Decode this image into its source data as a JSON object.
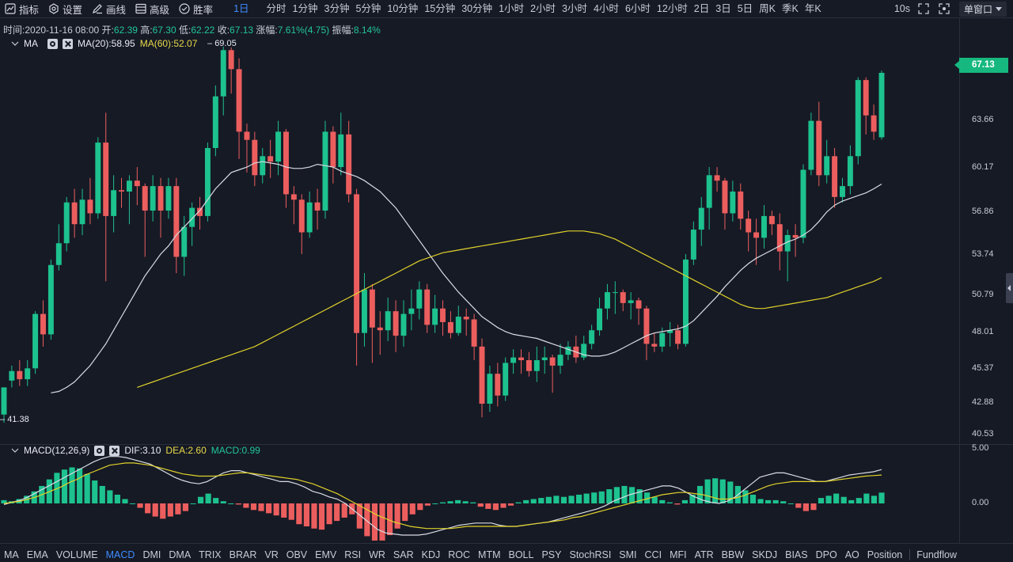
{
  "toolbar": {
    "tools": [
      {
        "label": "指标",
        "icon": "chart-line-icon"
      },
      {
        "label": "设置",
        "icon": "gear-icon"
      },
      {
        "label": "画线",
        "icon": "pencil-icon"
      },
      {
        "label": "高级",
        "icon": "window-icon"
      },
      {
        "label": "胜率",
        "icon": "check-circle-icon"
      }
    ],
    "intervals": [
      "1日",
      "分时",
      "1分钟",
      "3分钟",
      "5分钟",
      "10分钟",
      "15分钟",
      "30分钟",
      "1小时",
      "2小时",
      "3小时",
      "4小时",
      "6小时",
      "12小时",
      "2日",
      "3日",
      "5日",
      "周K",
      "季K",
      "年K"
    ],
    "active_interval": "1日",
    "refresh": "10s",
    "window_mode": "单窗口"
  },
  "ohlc": {
    "time_label": "时间:",
    "time": "2020-11-16 08:00",
    "open_label": "开:",
    "open": "62.39",
    "high_label": "高:",
    "high": "67.30",
    "low_label": "低:",
    "low": "62.22",
    "close_label": "收:",
    "close": "67.13",
    "change_label": "涨幅:",
    "change": "7.61%(4.75)",
    "amp_label": "振幅:",
    "amp": "8.14%"
  },
  "ma_legend": {
    "name": "MA",
    "ma20": "MA(20):58.95",
    "ma60": "MA(60):52.07",
    "high_mark": "69.05",
    "low_mark": "41.38"
  },
  "macd_legend": {
    "name": "MACD(12,26,9)",
    "dif": "DIF:3.10",
    "dea": "DEA:2.60",
    "macd": "MACD:0.99"
  },
  "price_axis": [
    "63.66",
    "60.17",
    "56.86",
    "53.74",
    "50.79",
    "48.01",
    "45.37",
    "42.88",
    "40.53"
  ],
  "last_price": "67.13",
  "macd_axis": [
    "5.00",
    "0.00"
  ],
  "colors": {
    "up": "#1dc28f",
    "down": "#ec5e5e",
    "ma20": "#d9dce4",
    "ma60": "#e0d12a",
    "background": "#161a25"
  },
  "indicator_tabs": [
    "MA",
    "EMA",
    "VOLUME",
    "MACD",
    "DMI",
    "DMA",
    "TRIX",
    "BRAR",
    "VR",
    "OBV",
    "EMV",
    "RSI",
    "WR",
    "SAR",
    "KDJ",
    "ROC",
    "MTM",
    "BOLL",
    "PSY",
    "StochRSI",
    "SMI",
    "CCI",
    "MFI",
    "ATR",
    "BBW",
    "SKDJ",
    "BIAS",
    "DPO",
    "AO",
    "Position",
    "Fundflow"
  ],
  "active_tab": "MACD",
  "chart_data": {
    "type": "candlestick",
    "candles": [
      [
        42.0,
        44.0,
        42.0,
        41.4
      ],
      [
        44.5,
        45.2,
        45.6,
        44.0
      ],
      [
        45.2,
        44.6,
        46.0,
        44.1
      ],
      [
        44.6,
        45.4,
        46.0,
        44.1
      ],
      [
        45.4,
        49.4,
        49.6,
        45.0
      ],
      [
        49.4,
        47.9,
        50.4,
        47.0
      ],
      [
        47.9,
        53.0,
        53.4,
        47.5
      ],
      [
        53.0,
        54.6,
        56.0,
        52.6
      ],
      [
        54.6,
        57.6,
        58.0,
        54.0
      ],
      [
        57.6,
        56.0,
        58.6,
        55.0
      ],
      [
        56.0,
        57.8,
        58.6,
        55.2
      ],
      [
        57.8,
        56.8,
        59.4,
        56.0
      ],
      [
        56.8,
        62.0,
        62.4,
        56.4
      ],
      [
        62.0,
        56.6,
        64.2,
        51.8
      ],
      [
        56.6,
        58.5,
        59.6,
        55.4
      ],
      [
        58.5,
        58.4,
        59.4,
        57.2
      ],
      [
        58.4,
        59.2,
        59.6,
        56.0
      ],
      [
        59.2,
        58.8,
        60.2,
        57.4
      ],
      [
        58.8,
        57.0,
        59.0,
        53.6
      ],
      [
        57.0,
        58.8,
        59.6,
        56.2
      ],
      [
        58.8,
        57.0,
        59.4,
        55.0
      ],
      [
        57.0,
        58.8,
        59.4,
        56.4
      ],
      [
        58.8,
        53.6,
        59.4,
        52.4
      ],
      [
        53.6,
        55.8,
        56.6,
        52.2
      ],
      [
        55.8,
        57.2,
        57.6,
        54.4
      ],
      [
        57.2,
        56.6,
        58.0,
        55.6
      ],
      [
        56.6,
        61.6,
        62.0,
        56.2
      ],
      [
        61.6,
        65.4,
        66.2,
        61.0
      ],
      [
        65.4,
        68.8,
        69.05,
        64.0
      ],
      [
        68.8,
        67.4,
        69.0,
        65.6
      ],
      [
        67.4,
        62.8,
        68.2,
        60.8
      ],
      [
        62.8,
        62.2,
        63.4,
        59.8
      ],
      [
        62.2,
        59.6,
        62.8,
        58.8
      ],
      [
        59.6,
        61.0,
        61.6,
        59.0
      ],
      [
        61.0,
        60.6,
        62.2,
        59.4
      ],
      [
        60.6,
        62.8,
        63.6,
        59.6
      ],
      [
        62.8,
        58.2,
        63.0,
        57.2
      ],
      [
        58.2,
        57.8,
        58.8,
        56.0
      ],
      [
        57.8,
        55.4,
        58.2,
        53.8
      ],
      [
        55.4,
        57.6,
        58.4,
        55.0
      ],
      [
        57.6,
        57.0,
        58.6,
        55.6
      ],
      [
        57.0,
        62.8,
        63.6,
        56.4
      ],
      [
        62.8,
        60.2,
        63.2,
        59.0
      ],
      [
        60.2,
        62.6,
        64.2,
        59.6
      ],
      [
        62.6,
        58.2,
        63.6,
        57.6
      ],
      [
        58.2,
        48.0,
        58.6,
        45.6
      ],
      [
        48.0,
        51.2,
        52.4,
        47.0
      ],
      [
        51.2,
        48.4,
        51.6,
        45.8
      ],
      [
        48.4,
        48.2,
        49.6,
        46.4
      ],
      [
        48.2,
        49.6,
        50.6,
        47.4
      ],
      [
        49.6,
        47.8,
        50.4,
        46.6
      ],
      [
        47.8,
        49.4,
        50.4,
        47.0
      ],
      [
        49.4,
        49.8,
        51.2,
        48.2
      ],
      [
        49.8,
        51.2,
        51.8,
        49.0
      ],
      [
        51.2,
        48.6,
        51.6,
        48.0
      ],
      [
        48.6,
        49.8,
        50.8,
        48.0
      ],
      [
        49.8,
        48.8,
        50.4,
        47.8
      ],
      [
        48.8,
        48.0,
        49.6,
        47.6
      ],
      [
        48.0,
        49.2,
        50.0,
        47.8
      ],
      [
        49.2,
        49.0,
        49.8,
        47.8
      ],
      [
        49.0,
        47.0,
        49.4,
        46.0
      ],
      [
        47.0,
        42.8,
        47.6,
        41.8
      ],
      [
        42.8,
        45.0,
        45.6,
        42.2
      ],
      [
        45.0,
        43.4,
        45.8,
        42.6
      ],
      [
        43.4,
        45.8,
        46.2,
        43.0
      ],
      [
        45.8,
        46.2,
        46.8,
        45.0
      ],
      [
        46.2,
        46.0,
        46.8,
        45.0
      ],
      [
        46.0,
        45.2,
        46.6,
        44.8
      ],
      [
        45.2,
        46.0,
        47.0,
        44.4
      ],
      [
        46.0,
        46.2,
        47.0,
        45.0
      ],
      [
        46.2,
        45.6,
        46.4,
        43.6
      ],
      [
        45.6,
        46.4,
        47.2,
        45.0
      ],
      [
        46.4,
        47.0,
        47.4,
        46.0
      ],
      [
        47.0,
        46.2,
        47.8,
        45.8
      ],
      [
        46.2,
        47.2,
        47.8,
        46.0
      ],
      [
        47.2,
        48.2,
        48.6,
        46.8
      ],
      [
        48.2,
        49.8,
        50.6,
        47.8
      ],
      [
        49.8,
        51.0,
        51.6,
        49.0
      ],
      [
        51.0,
        51.0,
        51.8,
        49.4
      ],
      [
        51.0,
        50.2,
        51.2,
        49.6
      ],
      [
        50.2,
        50.4,
        51.0,
        49.0
      ],
      [
        50.4,
        49.8,
        50.6,
        48.6
      ],
      [
        49.8,
        47.2,
        50.0,
        46.0
      ],
      [
        47.2,
        47.0,
        48.0,
        46.6
      ],
      [
        47.0,
        48.0,
        48.4,
        46.6
      ],
      [
        48.0,
        48.2,
        48.8,
        47.0
      ],
      [
        48.2,
        47.2,
        48.6,
        46.8
      ],
      [
        47.2,
        53.4,
        53.8,
        47.0
      ],
      [
        53.4,
        55.6,
        56.2,
        53.0
      ],
      [
        55.6,
        57.2,
        58.0,
        54.4
      ],
      [
        57.2,
        59.6,
        60.2,
        55.6
      ],
      [
        59.6,
        59.2,
        60.2,
        58.4
      ],
      [
        59.2,
        56.8,
        59.4,
        55.6
      ],
      [
        56.8,
        58.4,
        59.2,
        56.2
      ],
      [
        58.4,
        56.4,
        59.0,
        55.6
      ],
      [
        56.4,
        55.4,
        57.0,
        54.0
      ],
      [
        55.4,
        55.0,
        56.4,
        53.0
      ],
      [
        55.0,
        56.6,
        57.4,
        54.2
      ],
      [
        56.6,
        56.0,
        57.0,
        55.2
      ],
      [
        56.0,
        54.0,
        56.8,
        52.6
      ],
      [
        54.0,
        55.2,
        55.6,
        51.8
      ],
      [
        55.2,
        55.0,
        56.0,
        53.6
      ],
      [
        55.0,
        60.0,
        60.4,
        54.6
      ],
      [
        60.0,
        63.6,
        64.2,
        59.6
      ],
      [
        63.6,
        59.6,
        65.0,
        58.8
      ],
      [
        59.6,
        61.0,
        62.2,
        59.0
      ],
      [
        61.0,
        58.0,
        61.6,
        57.2
      ],
      [
        58.0,
        58.8,
        59.4,
        57.6
      ],
      [
        58.8,
        61.0,
        61.8,
        58.2
      ],
      [
        61.0,
        66.6,
        66.8,
        60.4
      ],
      [
        66.6,
        64.0,
        66.8,
        62.6
      ],
      [
        64.0,
        62.8,
        64.8,
        62.2
      ],
      [
        62.39,
        67.13,
        67.3,
        62.22
      ]
    ],
    "ma20": [
      43.6,
      43.7,
      44.0,
      44.4,
      45.0,
      45.6,
      46.4,
      47.2,
      48.2,
      49.2,
      50.2,
      51.2,
      52.2,
      53.0,
      53.8,
      54.4,
      55.2,
      55.8,
      56.4,
      57.0,
      57.8,
      58.6,
      59.2,
      59.8,
      60.0,
      60.2,
      60.5,
      60.6,
      60.5,
      60.4,
      60.2,
      60.1,
      60.1,
      60.2,
      60.4,
      60.3,
      60.2,
      59.9,
      59.7,
      59.5,
      59.2,
      58.8,
      58.4,
      57.8,
      57.2,
      56.4,
      55.6,
      54.8,
      54.0,
      53.2,
      52.4,
      51.7,
      51.0,
      50.4,
      49.8,
      49.2,
      48.8,
      48.4,
      48.1,
      47.9,
      47.8,
      47.7,
      47.6,
      47.4,
      47.2,
      47.0,
      46.8,
      46.6,
      46.4,
      46.3,
      46.3,
      46.4,
      46.6,
      46.9,
      47.2,
      47.5,
      47.8,
      48.0,
      48.1,
      48.2,
      48.3,
      48.5,
      48.9,
      49.5,
      50.1,
      50.7,
      51.4,
      52.0,
      52.6,
      53.1,
      53.5,
      53.8,
      54.1,
      54.4,
      54.7,
      54.9,
      55.2,
      55.6,
      56.2,
      56.9,
      57.4,
      57.7,
      57.9,
      58.1,
      58.3,
      58.6,
      58.95
    ],
    "ma60": [
      44.0,
      44.2,
      44.4,
      44.6,
      44.8,
      45.0,
      45.2,
      45.4,
      45.6,
      45.8,
      46.0,
      46.2,
      46.4,
      46.6,
      46.8,
      47.0,
      47.3,
      47.6,
      47.9,
      48.2,
      48.5,
      48.8,
      49.1,
      49.4,
      49.7,
      50.0,
      50.3,
      50.6,
      50.9,
      51.2,
      51.5,
      51.8,
      52.1,
      52.4,
      52.7,
      53.0,
      53.3,
      53.5,
      53.7,
      53.9,
      54.0,
      54.1,
      54.2,
      54.3,
      54.4,
      54.5,
      54.6,
      54.7,
      54.8,
      54.9,
      55.0,
      55.1,
      55.2,
      55.3,
      55.4,
      55.5,
      55.5,
      55.5,
      55.4,
      55.3,
      55.1,
      54.9,
      54.6,
      54.3,
      54.0,
      53.7,
      53.4,
      53.1,
      52.8,
      52.5,
      52.2,
      51.9,
      51.6,
      51.3,
      51.0,
      50.7,
      50.4,
      50.1,
      49.9,
      49.8,
      49.8,
      49.9,
      50.0,
      50.1,
      50.2,
      50.3,
      50.4,
      50.5,
      50.6,
      50.8,
      51.0,
      51.2,
      51.4,
      51.6,
      51.8,
      52.07
    ],
    "macd": {
      "dif": [
        -0.1,
        0.1,
        0.3,
        0.6,
        1.0,
        1.4,
        1.8,
        2.2,
        2.6,
        3.0,
        3.4,
        3.8,
        4.1,
        4.3,
        4.3,
        4.2,
        4.0,
        3.8,
        3.6,
        3.2,
        2.8,
        2.4,
        2.1,
        1.9,
        1.8,
        2.0,
        2.4,
        2.8,
        3.0,
        3.0,
        2.8,
        2.6,
        2.4,
        2.2,
        2.0,
        2.0,
        1.8,
        1.5,
        1.1,
        0.9,
        0.6,
        0.4,
        0.0,
        -0.6,
        -1.2,
        -1.8,
        -2.4,
        -2.7,
        -2.8,
        -2.9,
        -2.9,
        -2.9,
        -2.8,
        -2.6,
        -2.4,
        -2.2,
        -2.0,
        -1.9,
        -1.8,
        -1.8,
        -1.8,
        -2.0,
        -2.1,
        -2.1,
        -2.0,
        -1.9,
        -1.8,
        -1.7,
        -1.5,
        -1.3,
        -1.1,
        -0.9,
        -0.7,
        -0.5,
        -0.2,
        0.2,
        0.5,
        0.8,
        1.0,
        1.2,
        1.4,
        1.6,
        1.6,
        1.4,
        1.0,
        0.6,
        0.3,
        0.1,
        0.0,
        0.2,
        0.6,
        1.2,
        1.8,
        2.4,
        2.6,
        2.8,
        2.8,
        2.6,
        2.4,
        2.2,
        2.0,
        2.0,
        2.2,
        2.4,
        2.6,
        2.7,
        2.8,
        2.9,
        3.1
      ],
      "dea": [
        0.0,
        0.1,
        0.2,
        0.4,
        0.6,
        0.9,
        1.2,
        1.5,
        1.9,
        2.2,
        2.6,
        2.9,
        3.2,
        3.5,
        3.6,
        3.7,
        3.7,
        3.6,
        3.5,
        3.3,
        3.1,
        2.9,
        2.7,
        2.6,
        2.5,
        2.5,
        2.5,
        2.6,
        2.7,
        2.8,
        2.8,
        2.7,
        2.6,
        2.5,
        2.4,
        2.3,
        2.2,
        2.0,
        1.8,
        1.5,
        1.2,
        0.9,
        0.5,
        0.1,
        -0.3,
        -0.7,
        -1.1,
        -1.4,
        -1.7,
        -1.9,
        -2.1,
        -2.2,
        -2.3,
        -2.3,
        -2.3,
        -2.3,
        -2.2,
        -2.1,
        -2.1,
        -2.1,
        -2.1,
        -2.1,
        -2.1,
        -2.1,
        -2.0,
        -1.9,
        -1.8,
        -1.7,
        -1.6,
        -1.5,
        -1.3,
        -1.2,
        -1.0,
        -0.8,
        -0.6,
        -0.4,
        -0.2,
        0.0,
        0.2,
        0.4,
        0.6,
        0.8,
        0.9,
        1.0,
        1.0,
        0.9,
        0.8,
        0.6,
        0.4,
        0.4,
        0.5,
        0.7,
        1.0,
        1.3,
        1.6,
        1.8,
        1.9,
        2.0,
        2.0,
        2.0,
        2.0,
        2.0,
        2.1,
        2.2,
        2.3,
        2.4,
        2.5,
        2.55,
        2.6
      ],
      "hist": [
        0.3,
        0.2,
        0.4,
        0.7,
        1.1,
        1.6,
        2.2,
        2.8,
        3.1,
        3.3,
        3.2,
        2.7,
        2.1,
        1.6,
        1.2,
        0.8,
        0.4,
        0.0,
        -0.4,
        -0.9,
        -1.2,
        -1.4,
        -1.2,
        -1.0,
        -0.7,
        0.0,
        0.6,
        0.9,
        0.5,
        0.2,
        0.0,
        -0.1,
        -0.4,
        -0.6,
        -0.7,
        -0.9,
        -1.1,
        -1.3,
        -1.5,
        -1.9,
        -2.1,
        -2.3,
        -2.4,
        -1.9,
        -1.6,
        -1.3,
        -1.0,
        -2.3,
        -3.0,
        -3.4,
        -3.4,
        -2.9,
        -2.3,
        -1.6,
        -1.0,
        -0.6,
        -0.2,
        0.0,
        0.1,
        0.2,
        0.3,
        0.2,
        0.1,
        -0.3,
        -0.5,
        -0.6,
        -0.4,
        -0.2,
        0.1,
        0.3,
        0.4,
        0.5,
        0.6,
        0.7,
        0.6,
        0.7,
        0.8,
        0.9,
        1.0,
        1.1,
        1.3,
        1.5,
        1.6,
        1.5,
        1.3,
        1.0,
        0.6,
        0.3,
        0.1,
        -0.1,
        0.3,
        0.8,
        1.6,
        2.2,
        2.3,
        2.2,
        2.0,
        1.6,
        1.2,
        0.8,
        0.4,
        0.3,
        0.3,
        0.2,
        0.0,
        -0.4,
        -0.7,
        -0.6,
        0.5,
        0.7,
        0.9,
        0.6,
        0.3,
        0.5,
        0.9,
        0.7,
        0.99
      ]
    }
  }
}
